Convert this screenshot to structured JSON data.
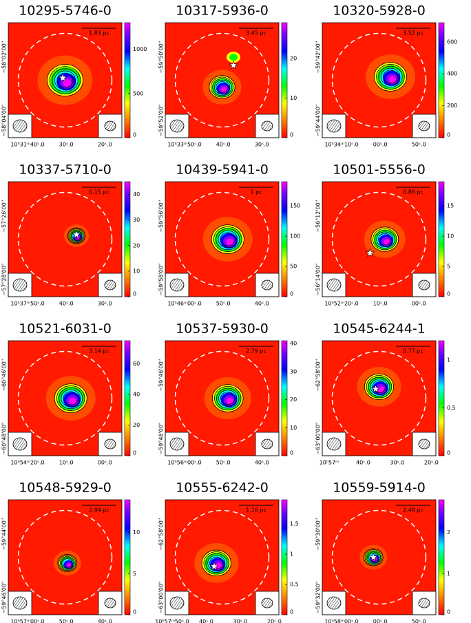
{
  "panels": [
    {
      "title": "10295-5746-0",
      "scale_bar": "1.83 pc",
      "colorbar": {
        "lim": [
          0,
          1300
        ],
        "ticks": [
          0,
          500,
          1000
        ]
      },
      "dec_ticks": [
        "−58°02'00\"",
        "−58°04'00\""
      ],
      "ra_ticks": [
        "10ʰ31ᵐ40ˢ.0",
        "30ˢ.0",
        "20ˢ.0"
      ]
    },
    {
      "title": "10317-5936-0",
      "scale_bar": "3.45 pc",
      "colorbar": {
        "lim": [
          0,
          29
        ],
        "ticks": [
          0,
          10,
          20
        ]
      },
      "dec_ticks": [
        "−59°50'00\"",
        "−59°52'00\""
      ],
      "ra_ticks": [
        "10ʰ33ᵐ50ˢ.0",
        "40ˢ.0",
        "30ˢ.0"
      ]
    },
    {
      "title": "10320-5928-0",
      "scale_bar": "3.52 pc",
      "colorbar": {
        "lim": [
          0,
          720
        ],
        "ticks": [
          0,
          200,
          400,
          600
        ]
      },
      "dec_ticks": [
        "−59°42'00\"",
        "−59°44'00\""
      ],
      "ra_ticks": [
        "10ʰ34ᵐ10ˢ.0",
        "00ˢ.0",
        "50ˢ.0"
      ]
    },
    {
      "title": "10337-5710-0",
      "scale_bar": "0.15 pc",
      "colorbar": {
        "lim": [
          0,
          45
        ],
        "ticks": [
          0,
          10,
          20,
          30,
          40
        ]
      },
      "dec_ticks": [
        "−57°26'00\"",
        "−57°28'00\""
      ],
      "ra_ticks": [
        "10ʰ37ᵐ50ˢ.0",
        "40ˢ.0",
        "30ˢ.0"
      ]
    },
    {
      "title": "10439-5941-0",
      "scale_bar": "1 pc",
      "colorbar": {
        "lim": [
          0,
          190
        ],
        "ticks": [
          0,
          50,
          100,
          150
        ]
      },
      "dec_ticks": [
        "−59°56'00\"",
        "−59°58'00\""
      ],
      "ra_ticks": [
        "10ʰ46ᵐ00ˢ.0",
        "50ˢ.0",
        "40ˢ.0"
      ]
    },
    {
      "title": "10501-5556-0",
      "scale_bar": "0.86 pc",
      "colorbar": {
        "lim": [
          0,
          19
        ],
        "ticks": [
          0,
          5,
          10,
          15
        ]
      },
      "dec_ticks": [
        "−56°12'00\"",
        "−56°14'00\""
      ],
      "ra_ticks": [
        "10ʰ52ᵐ20ˢ.0",
        "10ˢ.0",
        "00ˢ.0"
      ]
    },
    {
      "title": "10521-6031-0",
      "scale_bar": "3.14 pc",
      "colorbar": {
        "lim": [
          0,
          75
        ],
        "ticks": [
          0,
          20,
          40,
          60
        ]
      },
      "dec_ticks": [
        "−60°46'00\"",
        "−60°48'00\""
      ],
      "ra_ticks": [
        "10ʰ54ᵐ20ˢ.0",
        "10ˢ.0",
        "00ˢ.0"
      ]
    },
    {
      "title": "10537-5930-0",
      "scale_bar": "2.79 pc",
      "colorbar": {
        "lim": [
          0,
          41
        ],
        "ticks": [
          0,
          10,
          20,
          30,
          40
        ]
      },
      "dec_ticks": [
        "−59°46'00\"",
        "−59°48'00\""
      ],
      "ra_ticks": [
        "10ʰ56ᵐ00ˢ.0",
        "50ˢ.0",
        "40ˢ.0"
      ]
    },
    {
      "title": "10545-6244-1",
      "scale_bar": "0.77 pc",
      "colorbar": {
        "lim": [
          0,
          1.2
        ],
        "ticks": [
          0,
          0.5,
          1
        ]
      },
      "dec_ticks": [
        "−62°58'00\"",
        "−63°00'00\""
      ],
      "ra_ticks": [
        "10ʰ57ᵐ",
        "40ˢ.0",
        "30ˢ.0",
        "20ˢ.0"
      ]
    },
    {
      "title": "10548-5929-0",
      "scale_bar": "2.94 pc",
      "colorbar": {
        "lim": [
          0,
          14
        ],
        "ticks": [
          0,
          5,
          10
        ]
      },
      "dec_ticks": [
        "−59°44'00\"",
        "−59°46'00\""
      ],
      "ra_ticks": [
        "10ʰ57ᵐ00ˢ.0",
        "50ˢ.0",
        "40ˢ.0"
      ]
    },
    {
      "title": "10555-6242-0",
      "scale_bar": "1.16 pc",
      "colorbar": {
        "lim": [
          0,
          1.9
        ],
        "ticks": [
          0,
          0.5,
          1,
          1.5
        ]
      },
      "dec_ticks": [
        "−62°58'00\"",
        "−63°00'00\""
      ],
      "ra_ticks": [
        "10ʰ57ᵐ50ˢ.0",
        "40ˢ.0",
        "30ˢ.0",
        "20ˢ.0"
      ]
    },
    {
      "title": "10559-5914-0",
      "scale_bar": "2.48 pc",
      "colorbar": {
        "lim": [
          0,
          2.8
        ],
        "ticks": [
          0,
          1,
          2
        ]
      },
      "dec_ticks": [
        "−59°30'00\"",
        "−59°32'00\""
      ],
      "ra_ticks": [
        "10ʰ58ᵐ00ˢ.0",
        "00ˢ.0",
        "50ˢ.0"
      ]
    }
  ]
}
